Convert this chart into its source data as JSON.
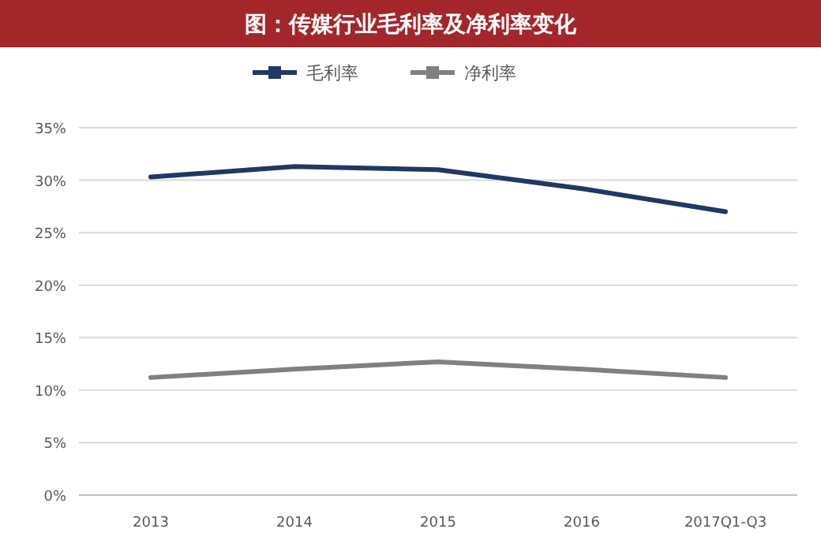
{
  "chart_data": {
    "type": "line",
    "title": "图：传媒行业毛利率及净利率变化",
    "categories": [
      "2013",
      "2014",
      "2015",
      "2016",
      "2017Q1-Q3"
    ],
    "series": [
      {
        "name": "毛利率",
        "color": "#1f3864",
        "values": [
          30.3,
          31.3,
          31.0,
          29.2,
          27.0
        ]
      },
      {
        "name": "净利率",
        "color": "#808080",
        "values": [
          11.2,
          12.0,
          12.7,
          12.0,
          11.2
        ]
      }
    ],
    "ylim": [
      0,
      35
    ],
    "yticks": [
      {
        "value": 0,
        "label": "0%"
      },
      {
        "value": 5,
        "label": "5%"
      },
      {
        "value": 10,
        "label": "10%"
      },
      {
        "value": 15,
        "label": "15%"
      },
      {
        "value": 20,
        "label": "20%"
      },
      {
        "value": 25,
        "label": "25%"
      },
      {
        "value": 30,
        "label": "30%"
      },
      {
        "value": 35,
        "label": "35%"
      }
    ],
    "grid": "y",
    "legend": "top",
    "marker": "none",
    "line_style": "solid"
  }
}
